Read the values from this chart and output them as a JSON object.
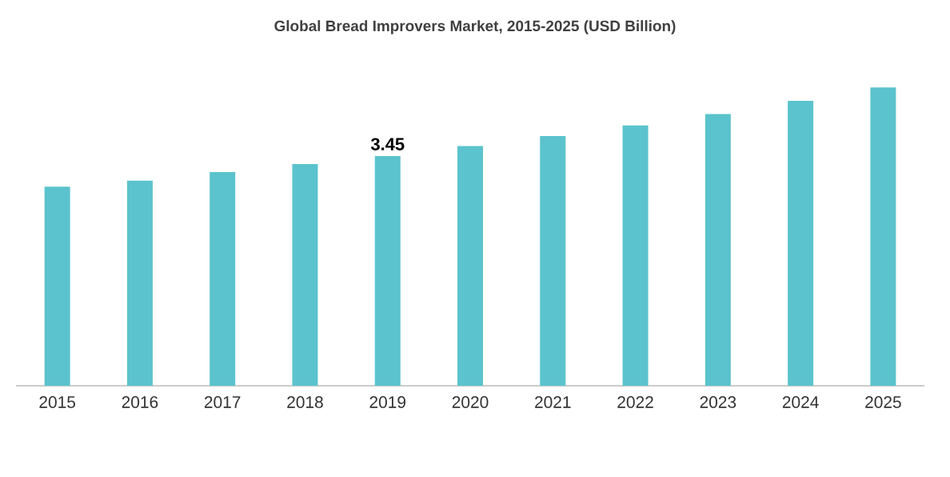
{
  "chart_data": {
    "type": "bar",
    "title": "Global Bread Improvers Market, 2015-2025 (USD Billion)",
    "categories": [
      "2015",
      "2016",
      "2017",
      "2018",
      "2019",
      "2020",
      "2021",
      "2022",
      "2023",
      "2024",
      "2025"
    ],
    "values": [
      2.99,
      3.08,
      3.21,
      3.33,
      3.45,
      3.6,
      3.75,
      3.91,
      4.08,
      4.28,
      4.48
    ],
    "value_labels": [
      null,
      null,
      null,
      null,
      "3.45",
      null,
      null,
      null,
      null,
      null,
      null
    ],
    "color": "#5bc3cd"
  }
}
